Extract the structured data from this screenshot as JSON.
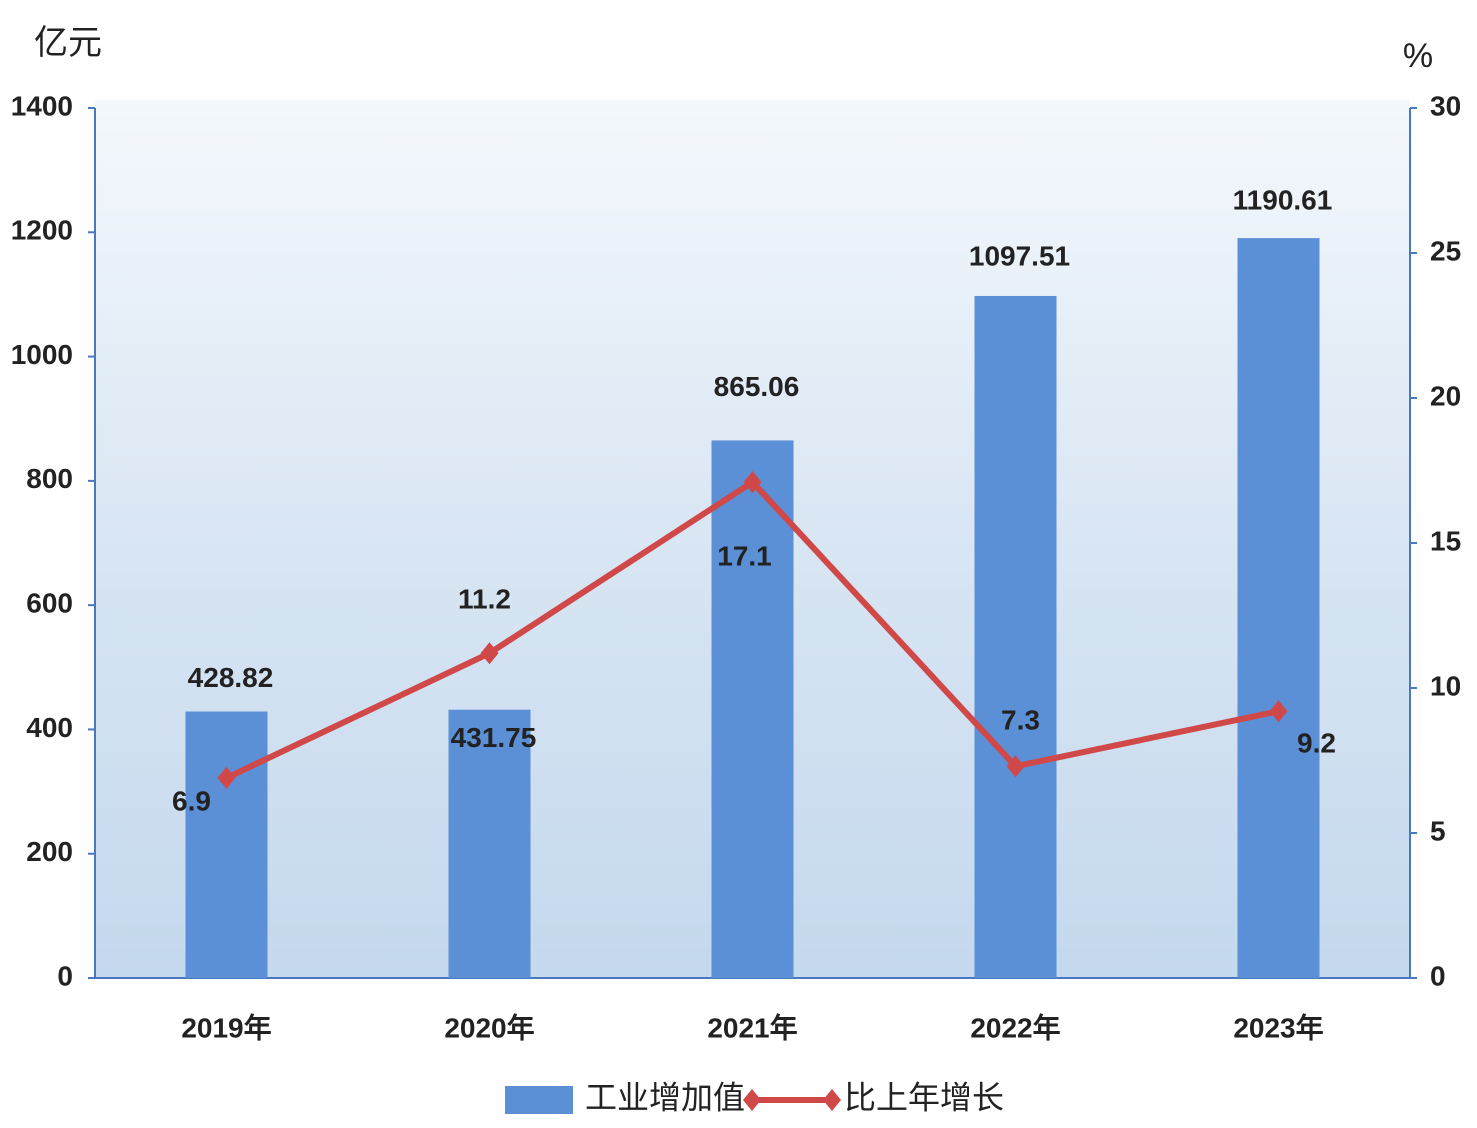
{
  "chart_data": {
    "type": "bar",
    "y_unit": "亿元",
    "y2_unit": "%",
    "categories": [
      "2019年",
      "2020年",
      "2021年",
      "2022年",
      "2023年"
    ],
    "series": [
      {
        "name": "工业增加值",
        "type": "bar",
        "color": "#5b8fd6",
        "values": [
          428.82,
          431.75,
          865.06,
          1097.51,
          1190.61
        ]
      },
      {
        "name": "比上年增长",
        "type": "line",
        "axis": "y2",
        "color": "#d04848",
        "values": [
          6.9,
          11.2,
          17.1,
          7.3,
          9.2
        ]
      }
    ],
    "ylim": [
      0,
      1400
    ],
    "yticks": [
      0,
      200,
      400,
      600,
      800,
      1000,
      1200,
      1400
    ],
    "y2lim": [
      0,
      30
    ],
    "y2ticks": [
      0,
      5,
      10,
      15,
      20,
      25,
      30
    ],
    "grid": false,
    "legend": "bottom"
  }
}
